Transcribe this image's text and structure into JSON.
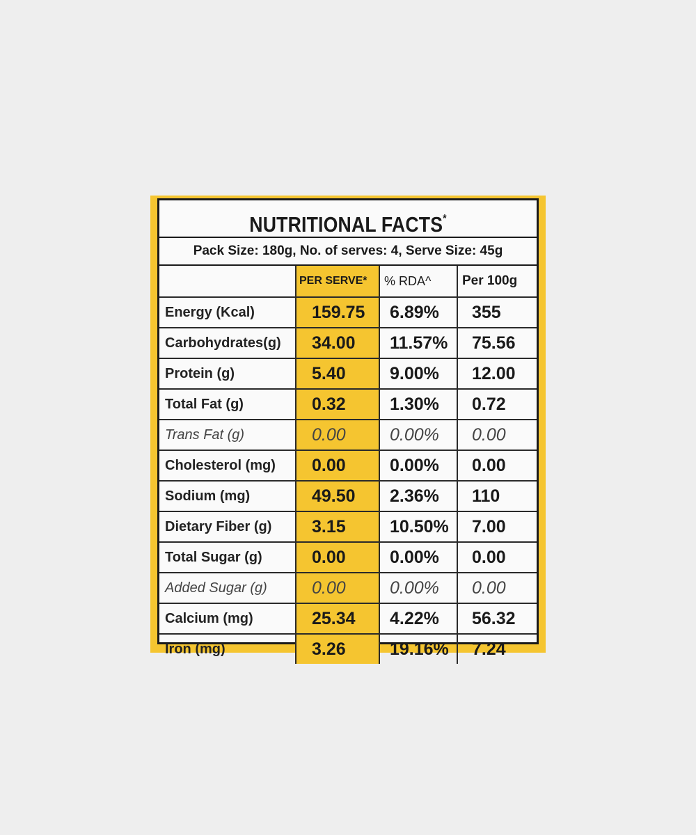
{
  "title": "NUTRITIONAL FACTS",
  "title_mark": "*",
  "pack_info": "Pack Size: 180g, No. of serves: 4, Serve Size: 45g",
  "columns": {
    "per_serve": "PER SERVE*",
    "rda": "% RDA^",
    "per_100g": "Per 100g"
  },
  "rows": [
    {
      "name": "Energy (Kcal)",
      "serve": "159.75",
      "rda": "6.89%",
      "per100": "355"
    },
    {
      "name": "Carbohydrates(g)",
      "serve": "34.00",
      "rda": "11.57%",
      "per100": "75.56"
    },
    {
      "name": "Protein (g)",
      "serve": "5.40",
      "rda": "9.00%",
      "per100": "12.00"
    },
    {
      "name": "Total Fat (g)",
      "serve": "0.32",
      "rda": "1.30%",
      "per100": "0.72"
    },
    {
      "name": "Trans Fat (g)",
      "serve": "0.00",
      "rda": "0.00%",
      "per100": "0.00"
    },
    {
      "name": "Cholesterol (mg)",
      "serve": "0.00",
      "rda": "0.00%",
      "per100": "0.00"
    },
    {
      "name": "Sodium (mg)",
      "serve": "49.50",
      "rda": "2.36%",
      "per100": "110"
    },
    {
      "name": "Dietary Fiber (g)",
      "serve": "3.15",
      "rda": "10.50%",
      "per100": "7.00"
    },
    {
      "name": "Total Sugar (g)",
      "serve": "0.00",
      "rda": "0.00%",
      "per100": "0.00"
    },
    {
      "name": "Added Sugar (g)",
      "serve": "0.00",
      "rda": "0.00%",
      "per100": "0.00"
    },
    {
      "name": "Calcium (mg)",
      "serve": "25.34",
      "rda": "4.22%",
      "per100": "56.32"
    },
    {
      "name": "Iron (mg)",
      "serve": "3.26",
      "rda": "19.16%",
      "per100": "7.24"
    }
  ],
  "colors": {
    "label_yellow": "#f5c530",
    "border": "#1a1a1a",
    "background": "#eeeeee"
  }
}
